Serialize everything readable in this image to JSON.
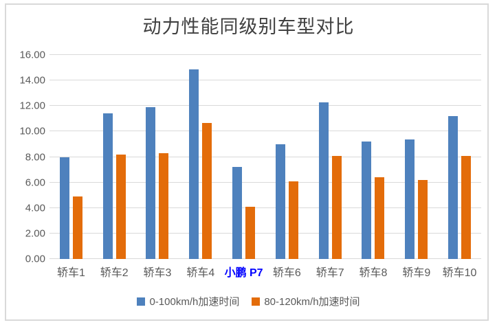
{
  "window": {
    "background": "#FFFFFF",
    "frame_border_color": "#D9D9D9"
  },
  "chart_data": {
    "type": "bar",
    "title": "动力性能同级别车型对比",
    "categories": [
      "轿车1",
      "轿车2",
      "轿车3",
      "轿车4",
      "小鹏 P7",
      "轿车6",
      "轿车7",
      "轿车8",
      "轿车9",
      "轿车10"
    ],
    "highlight_category_index": 4,
    "highlight_color": "#0000FF",
    "series": [
      {
        "name": "0-100km/h加速时间",
        "color": "#4E81BD",
        "values": [
          8.0,
          11.4,
          11.9,
          14.85,
          7.2,
          9.0,
          12.3,
          9.2,
          9.4,
          11.2
        ]
      },
      {
        "name": "80-120km/h加速时间",
        "color": "#E36C0A",
        "values": [
          4.9,
          8.2,
          8.3,
          10.65,
          4.1,
          6.1,
          8.1,
          6.4,
          6.2,
          8.1
        ]
      }
    ],
    "xlabel": "",
    "ylabel": "",
    "ylim": [
      0,
      16
    ],
    "ytick_labels": [
      "0.00",
      "2.00",
      "4.00",
      "6.00",
      "8.00",
      "10.00",
      "12.00",
      "14.00",
      "16.00"
    ],
    "grid": true,
    "grid_color": "#D9D9D9",
    "axis_text_color": "#595959",
    "title_color": "#404040",
    "legend_position": "bottom"
  }
}
